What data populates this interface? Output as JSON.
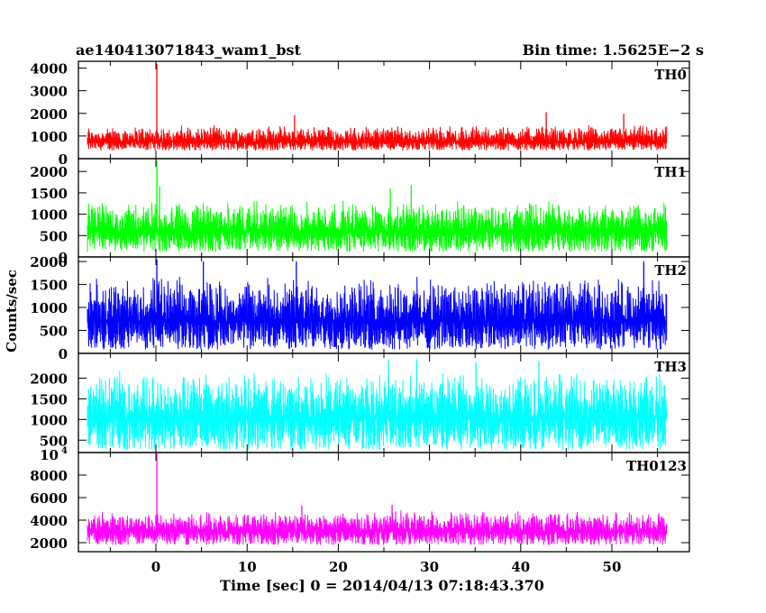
{
  "header": {
    "left": "ae140413071843_wam1_bst",
    "right": "Bin time: 1.5625E−2 s"
  },
  "chart_data": {
    "type": "line",
    "title": "ae140413071843_wam1_bst",
    "subtitle": "Bin time: 1.5625E−2 s",
    "xlabel": "Time [sec] 0 = 2014/04/13 07:18:43.370",
    "ylabel": "Counts/sec",
    "xlim": [
      -8.5,
      58.5
    ],
    "x_ticks": [
      0,
      10,
      20,
      30,
      40,
      50
    ],
    "x_range_data": [
      -7.5,
      56
    ],
    "bin_time_s": 0.015625,
    "panels": [
      {
        "name": "TH0",
        "color": "#ff0000",
        "ylim": [
          0,
          4300
        ],
        "yticks": [
          0,
          1000,
          2000,
          3000,
          4000
        ],
        "mean": 750,
        "noise_low": 360,
        "noise_high": 1500,
        "spikes": [
          {
            "x": 0.1,
            "y": 4200
          },
          {
            "x": 15.2,
            "y": 1920
          },
          {
            "x": 42.8,
            "y": 2050
          },
          {
            "x": 51.3,
            "y": 1980
          }
        ]
      },
      {
        "name": "TH1",
        "color": "#00ff00",
        "ylim": [
          0,
          2300
        ],
        "yticks": [
          0,
          500,
          1000,
          1500,
          2000
        ],
        "mean": 600,
        "noise_low": 120,
        "noise_high": 1350,
        "spikes": [
          {
            "x": 0.1,
            "y": 2250
          },
          {
            "x": 0.4,
            "y": 1650
          },
          {
            "x": 25.7,
            "y": 1600
          },
          {
            "x": 28.0,
            "y": 1680
          }
        ]
      },
      {
        "name": "TH2",
        "color": "#0000ff",
        "ylim": [
          0,
          2100
        ],
        "yticks": [
          0,
          500,
          1000,
          1500,
          2000
        ],
        "mean": 700,
        "noise_low": 80,
        "noise_high": 1700,
        "spikes": [
          {
            "x": 0.1,
            "y": 2050
          },
          {
            "x": 5.2,
            "y": 2000
          },
          {
            "x": 15.4,
            "y": 2000
          },
          {
            "x": 53.5,
            "y": 2000
          }
        ]
      },
      {
        "name": "TH3",
        "color": "#00ffff",
        "ylim": [
          200,
          2600
        ],
        "yticks": [
          500,
          1000,
          1500,
          2000
        ],
        "mean": 1050,
        "noise_low": 260,
        "noise_high": 2200,
        "spikes": [
          {
            "x": 25.5,
            "y": 2450
          },
          {
            "x": 28.6,
            "y": 2460
          },
          {
            "x": 35.1,
            "y": 2380
          },
          {
            "x": 42.0,
            "y": 2420
          }
        ]
      },
      {
        "name": "TH0123",
        "color": "#ff00ff",
        "ylim": [
          1200,
          10000
        ],
        "yticks": [
          2000,
          4000,
          6000,
          8000
        ],
        "ytick_top_label": "10",
        "ytick_top_exp": "4",
        "mean": 3000,
        "noise_low": 1800,
        "noise_high": 4900,
        "spikes": [
          {
            "x": 0.1,
            "y": 9900
          },
          {
            "x": 16.0,
            "y": 5300
          },
          {
            "x": 25.9,
            "y": 5350
          }
        ]
      }
    ]
  }
}
